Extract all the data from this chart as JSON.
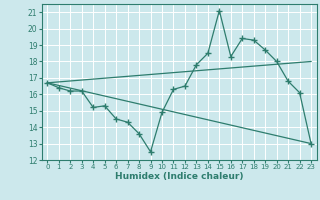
{
  "xlabel": "Humidex (Indice chaleur)",
  "bg_color": "#cce8ec",
  "line_color": "#2e7d6e",
  "grid_color": "#ffffff",
  "xlim": [
    -0.5,
    23.5
  ],
  "ylim": [
    12,
    21.5
  ],
  "yticks": [
    12,
    13,
    14,
    15,
    16,
    17,
    18,
    19,
    20,
    21
  ],
  "xticks": [
    0,
    1,
    2,
    3,
    4,
    5,
    6,
    7,
    8,
    9,
    10,
    11,
    12,
    13,
    14,
    15,
    16,
    17,
    18,
    19,
    20,
    21,
    22,
    23
  ],
  "line1_x": [
    0,
    1,
    2,
    3,
    4,
    5,
    6,
    7,
    8,
    9,
    10,
    11,
    12,
    13,
    14,
    15,
    16,
    17,
    18,
    19,
    20,
    21,
    22,
    23
  ],
  "line1_y": [
    16.7,
    16.4,
    16.2,
    16.2,
    15.2,
    15.3,
    14.5,
    14.3,
    13.6,
    12.5,
    14.9,
    16.3,
    16.5,
    17.8,
    18.5,
    21.1,
    18.3,
    19.4,
    19.3,
    18.7,
    18.0,
    16.8,
    16.1,
    13.0
  ],
  "line2_x": [
    0,
    23
  ],
  "line2_y": [
    16.7,
    18.0
  ],
  "line3_x": [
    0,
    23
  ],
  "line3_y": [
    16.7,
    13.0
  ]
}
